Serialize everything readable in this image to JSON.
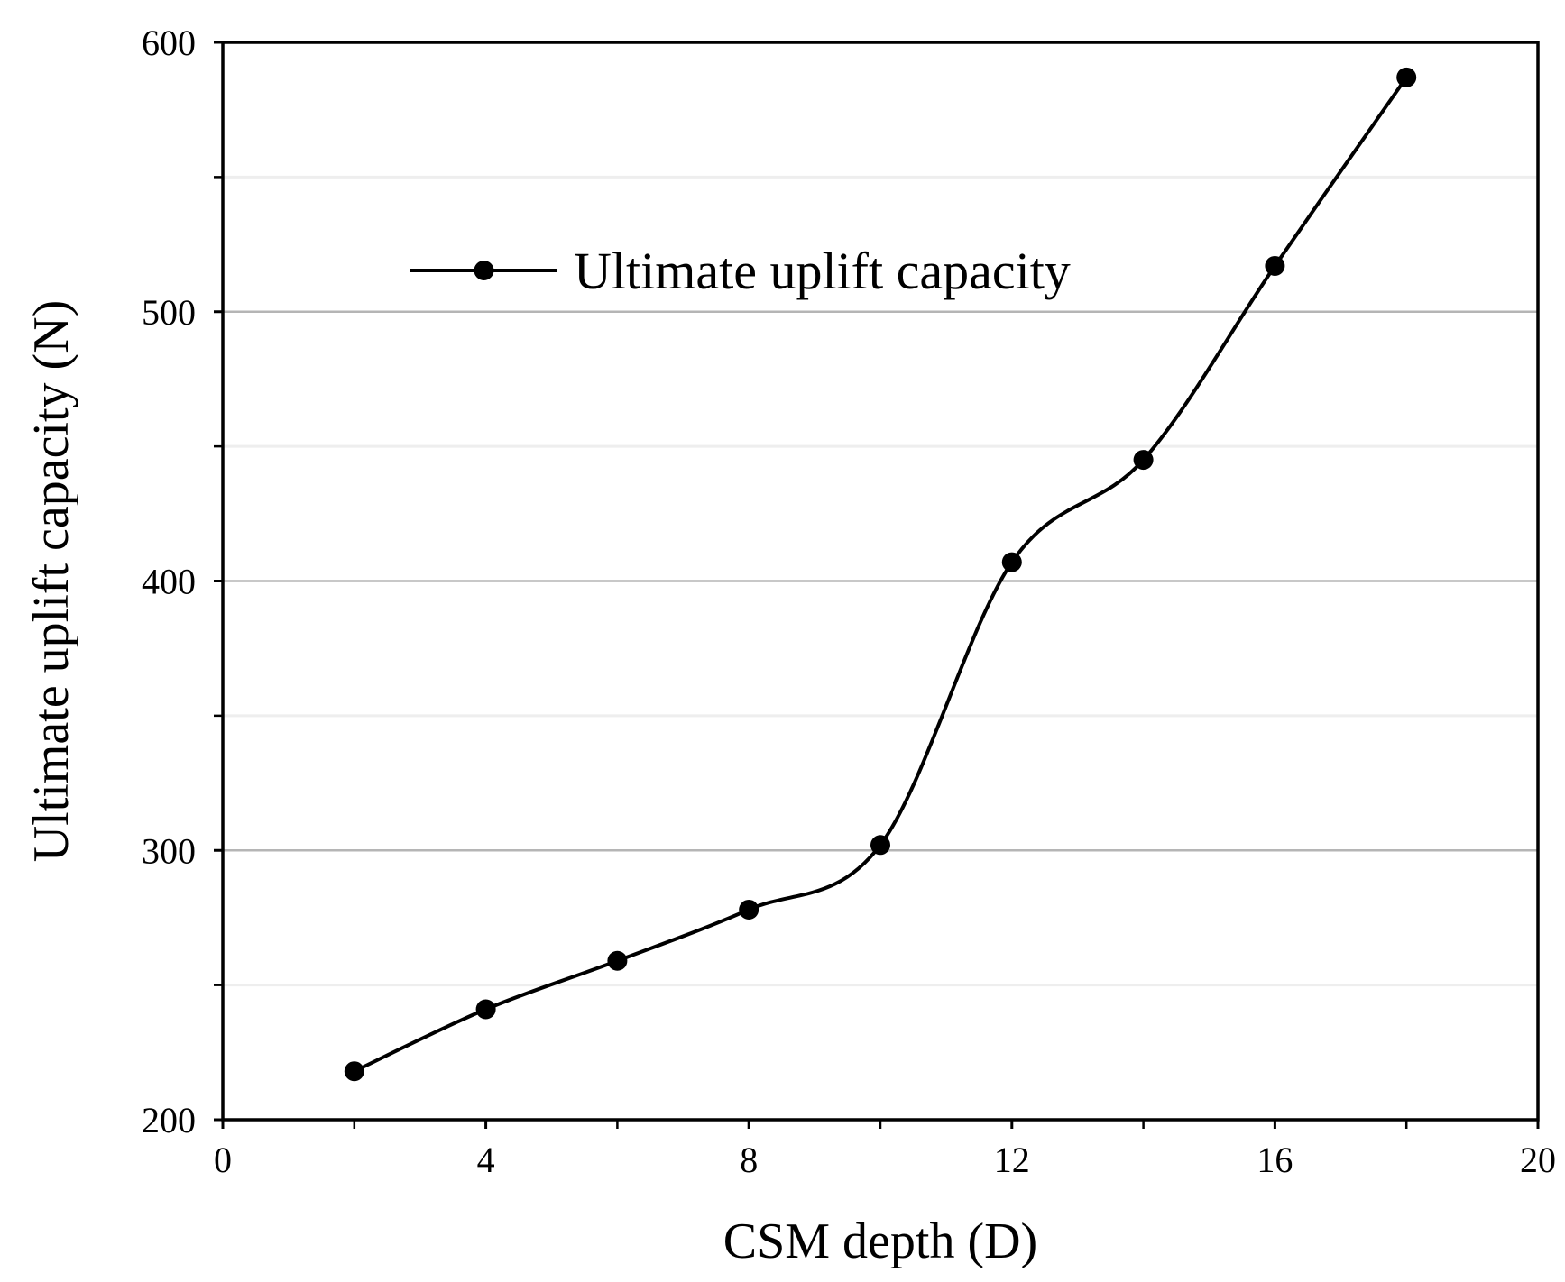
{
  "chart_data": {
    "type": "line",
    "title": "",
    "xlabel": "CSM depth (D)",
    "ylabel": "Ultimate uplift capacity (N)",
    "xlim": [
      0,
      20
    ],
    "ylim": [
      200,
      600
    ],
    "xticks": [
      0,
      4,
      8,
      12,
      16,
      20
    ],
    "xtick_labels": [
      "0",
      "4",
      "8",
      "12",
      "16",
      "20"
    ],
    "xminor_ticks": [
      2,
      6,
      10,
      14,
      18
    ],
    "yticks": [
      200,
      300,
      400,
      500,
      600
    ],
    "ytick_labels": [
      "200",
      "300",
      "400",
      "500",
      "600"
    ],
    "yminor_gridlines": [
      250,
      350,
      450,
      550
    ],
    "grid": true,
    "legend_position": "top-left",
    "series": [
      {
        "name": "Ultimate uplift capacity",
        "color": "#000000",
        "marker": "circle",
        "smooth": true,
        "x": [
          2,
          4,
          6,
          8,
          10,
          12,
          14,
          16,
          18
        ],
        "y": [
          218,
          241,
          259,
          278,
          302,
          407,
          445,
          517,
          587
        ]
      }
    ]
  },
  "colors": {
    "major_grid": "#b5b5b5",
    "minor_grid": "#eeeeee",
    "axis": "#000000"
  }
}
